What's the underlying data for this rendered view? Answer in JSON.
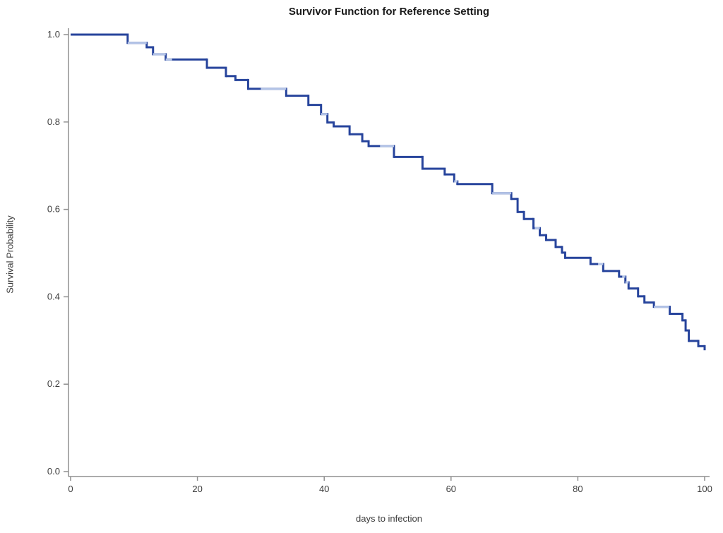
{
  "chart_data": {
    "type": "line",
    "subtype": "step-survivor-function",
    "title": "Survivor Function for Reference Setting",
    "xlabel": "days to infection",
    "ylabel": "Survival Probability",
    "xlim": [
      0,
      100
    ],
    "ylim": [
      0.0,
      1.0
    ],
    "x_ticks": [
      0,
      20,
      40,
      60,
      80,
      100
    ],
    "y_ticks": [
      "0.0",
      "0.2",
      "0.4",
      "0.6",
      "0.8",
      "1.0"
    ],
    "grid": false,
    "legend": false,
    "series": [
      {
        "name": "survivor-function",
        "steps": [
          [
            0,
            1.0
          ],
          [
            9,
            0.981
          ],
          [
            12,
            0.971
          ],
          [
            13,
            0.955
          ],
          [
            15,
            0.943
          ],
          [
            21.5,
            0.924
          ],
          [
            24.5,
            0.905
          ],
          [
            26,
            0.896
          ],
          [
            28,
            0.876
          ],
          [
            34,
            0.86
          ],
          [
            37.5,
            0.839
          ],
          [
            39.5,
            0.818
          ],
          [
            40.5,
            0.799
          ],
          [
            41.5,
            0.79
          ],
          [
            44,
            0.772
          ],
          [
            46,
            0.756
          ],
          [
            47,
            0.745
          ],
          [
            51,
            0.72
          ],
          [
            55.5,
            0.693
          ],
          [
            59,
            0.68
          ],
          [
            60.5,
            0.664
          ],
          [
            61,
            0.658
          ],
          [
            66.5,
            0.637
          ],
          [
            69.5,
            0.624
          ],
          [
            70.5,
            0.594
          ],
          [
            71.5,
            0.578
          ],
          [
            73,
            0.557
          ],
          [
            74,
            0.541
          ],
          [
            75,
            0.53
          ],
          [
            76.5,
            0.514
          ],
          [
            77.5,
            0.501
          ],
          [
            78,
            0.489
          ],
          [
            82,
            0.475
          ],
          [
            84,
            0.459
          ],
          [
            86.5,
            0.446
          ],
          [
            87.5,
            0.433
          ],
          [
            88,
            0.419
          ],
          [
            89.5,
            0.401
          ],
          [
            90.5,
            0.387
          ],
          [
            92,
            0.377
          ],
          [
            94.5,
            0.361
          ],
          [
            96.5,
            0.346
          ],
          [
            97,
            0.323
          ],
          [
            97.5,
            0.299
          ],
          [
            99,
            0.287
          ],
          [
            100,
            0.28
          ]
        ]
      }
    ],
    "light_segments": [
      [
        9,
        12
      ],
      [
        13,
        16
      ],
      [
        30,
        34
      ],
      [
        39.5,
        40.5
      ],
      [
        48.8,
        51
      ],
      [
        60.5,
        61
      ],
      [
        66.5,
        69.5
      ],
      [
        73.2,
        74
      ],
      [
        83.2,
        84
      ],
      [
        87,
        88
      ],
      [
        92,
        94.4
      ]
    ],
    "colors": {
      "curve_dark": "#27449c",
      "curve_light": "#b4c4e7",
      "axis": "#8f8f8f",
      "tick_text": "#3d3d3d",
      "title_text": "#1a1a1a"
    }
  }
}
